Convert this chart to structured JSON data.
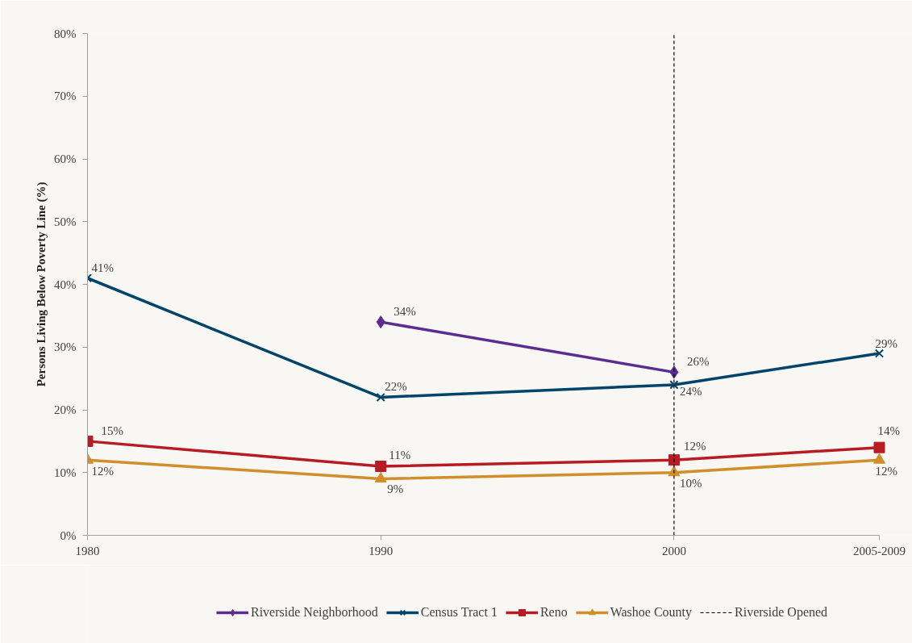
{
  "chart_data": {
    "type": "line",
    "ylabel": "Persons Living Below Poverty Line (%)",
    "x": [
      1980,
      1990,
      2000,
      2007
    ],
    "xlim": [
      1980,
      2007
    ],
    "xticks": [
      1980,
      1990,
      2000,
      {
        "value": 2007,
        "label": "2005-2009"
      }
    ],
    "ylim": [
      0,
      80
    ],
    "yticks": [
      {
        "value": 0,
        "label": "0%"
      },
      {
        "value": 10,
        "label": "10%"
      },
      {
        "value": 20,
        "label": "20%"
      },
      {
        "value": 30,
        "label": "30%"
      },
      {
        "value": 40,
        "label": "40%"
      },
      {
        "value": 50,
        "label": "50%"
      },
      {
        "value": 60,
        "label": "60%"
      },
      {
        "value": 70,
        "label": "70%"
      },
      {
        "value": 80,
        "label": "80%"
      }
    ],
    "series": [
      {
        "name": "Riverside Neighborhood",
        "color": "#5b2d90",
        "marker": "diamond",
        "values": [
          null,
          34,
          26,
          null
        ],
        "value_labels": [
          null,
          "34%",
          "26%",
          null
        ]
      },
      {
        "name": "Census Tract 1",
        "color": "#004469",
        "marker": "cross",
        "values": [
          41,
          22,
          24,
          29
        ],
        "value_labels": [
          "41%",
          "22%",
          "24%",
          "29%"
        ]
      },
      {
        "name": "Reno",
        "color": "#b71c25",
        "marker": "square",
        "values": [
          15,
          11,
          12,
          14
        ],
        "value_labels": [
          "15%",
          "11%",
          "12%",
          "14%"
        ]
      },
      {
        "name": "Washoe County",
        "color": "#d08f2a",
        "marker": "triangle",
        "values": [
          12,
          9,
          10,
          12
        ],
        "value_labels": [
          "12%",
          "9%",
          "10%",
          "12%"
        ]
      }
    ],
    "ref_lines": [
      {
        "axis": "x",
        "value": 2000,
        "label": "Riverside Opened",
        "color": "#000000",
        "line_style": "dashed"
      }
    ],
    "legend": "bottom",
    "line_style": "solid"
  }
}
